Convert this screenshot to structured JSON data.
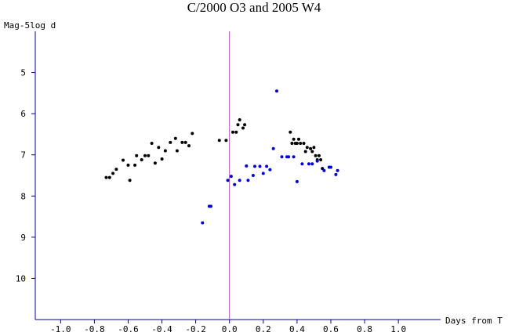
{
  "chart_data": {
    "type": "scatter",
    "title": "C/2000 O3 and 2005 W4",
    "xlabel": "Days from T",
    "ylabel": "Mag-5log d",
    "xlim": [
      -1.15,
      1.25
    ],
    "ylim": [
      11.0,
      4.0
    ],
    "y_inverted": true,
    "x_ticks": [
      "-1.0",
      "-0.8",
      "-0.6",
      "-0.4",
      "-0.2",
      "0.0",
      "0.2",
      "0.4",
      "0.6",
      "0.8",
      "1.0"
    ],
    "x_tick_values": [
      -1.0,
      -0.8,
      -0.6,
      -0.4,
      -0.2,
      0.0,
      0.2,
      0.4,
      0.6,
      0.8,
      1.0
    ],
    "y_ticks": [
      "5",
      "6",
      "7",
      "8",
      "9",
      "10"
    ],
    "y_tick_values": [
      5,
      6,
      7,
      8,
      9,
      10
    ],
    "reference_line_x": 0.0,
    "colors": {
      "axis": "#000099",
      "reference_line": "#cc33cc",
      "black_series": "#000000",
      "blue_series": "#0000dd"
    },
    "series": [
      {
        "color": "#000000",
        "points": [
          [
            -0.73,
            7.55
          ],
          [
            -0.71,
            7.55
          ],
          [
            -0.69,
            7.45
          ],
          [
            -0.67,
            7.35
          ],
          [
            -0.63,
            7.13
          ],
          [
            -0.6,
            7.25
          ],
          [
            -0.59,
            7.62
          ],
          [
            -0.56,
            7.25
          ],
          [
            -0.55,
            7.02
          ],
          [
            -0.52,
            7.12
          ],
          [
            -0.5,
            7.02
          ],
          [
            -0.48,
            7.02
          ],
          [
            -0.46,
            6.72
          ],
          [
            -0.44,
            7.2
          ],
          [
            -0.42,
            6.82
          ],
          [
            -0.4,
            7.1
          ],
          [
            -0.38,
            6.9
          ],
          [
            -0.35,
            6.7
          ],
          [
            -0.32,
            6.6
          ],
          [
            -0.31,
            6.9
          ],
          [
            -0.28,
            6.7
          ],
          [
            -0.26,
            6.7
          ],
          [
            -0.24,
            6.78
          ],
          [
            -0.22,
            6.48
          ],
          [
            -0.06,
            6.65
          ],
          [
            -0.02,
            6.65
          ],
          [
            0.02,
            6.45
          ],
          [
            0.04,
            6.45
          ],
          [
            0.05,
            6.27
          ],
          [
            0.06,
            6.15
          ],
          [
            0.08,
            6.35
          ],
          [
            0.09,
            6.27
          ],
          [
            0.36,
            6.45
          ],
          [
            0.37,
            6.72
          ],
          [
            0.38,
            6.62
          ],
          [
            0.39,
            6.72
          ],
          [
            0.4,
            6.72
          ],
          [
            0.41,
            6.62
          ],
          [
            0.42,
            6.72
          ],
          [
            0.44,
            6.72
          ],
          [
            0.45,
            6.92
          ],
          [
            0.46,
            6.82
          ],
          [
            0.48,
            6.85
          ],
          [
            0.49,
            6.92
          ],
          [
            0.5,
            6.82
          ],
          [
            0.51,
            7.02
          ],
          [
            0.52,
            7.12
          ],
          [
            0.53,
            7.02
          ],
          [
            0.54,
            7.12
          ],
          [
            0.55,
            7.33
          ]
        ]
      },
      {
        "color": "#0000dd",
        "points": [
          [
            -0.16,
            8.65
          ],
          [
            -0.12,
            8.25
          ],
          [
            -0.11,
            8.25
          ],
          [
            -0.01,
            7.62
          ],
          [
            0.01,
            7.52
          ],
          [
            0.03,
            7.72
          ],
          [
            0.06,
            7.62
          ],
          [
            0.1,
            7.27
          ],
          [
            0.11,
            7.62
          ],
          [
            0.14,
            7.5
          ],
          [
            0.15,
            7.28
          ],
          [
            0.18,
            7.28
          ],
          [
            0.2,
            7.45
          ],
          [
            0.22,
            7.28
          ],
          [
            0.24,
            7.36
          ],
          [
            0.26,
            6.85
          ],
          [
            0.28,
            5.45
          ],
          [
            0.31,
            7.05
          ],
          [
            0.34,
            7.05
          ],
          [
            0.35,
            7.05
          ],
          [
            0.38,
            7.05
          ],
          [
            0.4,
            7.65
          ],
          [
            0.43,
            7.22
          ],
          [
            0.47,
            7.22
          ],
          [
            0.49,
            7.22
          ],
          [
            0.52,
            7.15
          ],
          [
            0.56,
            7.38
          ],
          [
            0.59,
            7.3
          ],
          [
            0.6,
            7.3
          ],
          [
            0.63,
            7.48
          ],
          [
            0.64,
            7.38
          ]
        ]
      }
    ]
  }
}
